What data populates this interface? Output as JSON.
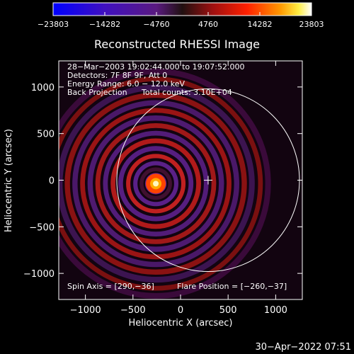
{
  "chart_data": {
    "type": "heatmap",
    "title": "Reconstructed RHESSI Image",
    "xlabel": "Heliocentric X (arcsec)",
    "ylabel": "Heliocentric Y (arcsec)",
    "xlim": [
      -1280,
      1280
    ],
    "ylim": [
      -1280,
      1280
    ],
    "x_ticks": [
      -1000,
      -500,
      0,
      500,
      1000
    ],
    "x_tick_labels": [
      "−1000",
      "−500",
      "0",
      "500",
      "1000"
    ],
    "y_ticks": [
      -1000,
      -500,
      0,
      500,
      1000
    ],
    "y_tick_labels": [
      "−1000",
      "−500",
      "0",
      "500",
      "1000"
    ],
    "colorbar": {
      "min": -23803,
      "max": 23803,
      "ticks": [
        -23803,
        -14282,
        -4760,
        4760,
        14282,
        23803
      ],
      "tick_labels": [
        "−23803",
        "−14282",
        "−4760",
        "4760",
        "14282",
        "23803"
      ]
    },
    "source": {
      "x": -260,
      "y": -37
    },
    "solar_limb_radius_arcsec": 960,
    "sun_center_cross": {
      "x": 290,
      "y": 0
    },
    "annotations": {
      "time_range": "28−Mar−2003 19:02:44.000 to 19:07:52.000",
      "detectors": "Detectors: 7F 8F 9F, Att 0",
      "energy_range": "Energy Range: 6.0 − 12.0 keV",
      "method": "Back Projection",
      "total_counts": "Total counts: 3.10E+04",
      "spin_axis": "Spin Axis = [290,−36]",
      "flare_position": "Flare Position = [−260,−37]"
    },
    "grid": false
  },
  "footer": {
    "date_stamp": "30−Apr−2022 07:51"
  }
}
